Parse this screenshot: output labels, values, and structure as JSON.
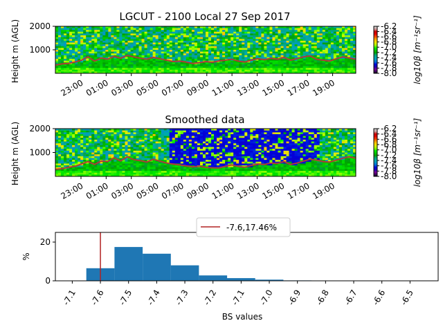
{
  "chart_data": [
    {
      "type": "heatmap",
      "title": "LGCUT - 2100 Local 27 Sep 2017",
      "ylabel": "Height m (AGL)",
      "y_ticks": [
        "1000",
        "2000"
      ],
      "ylim": [
        0,
        2000
      ],
      "x_ticks": [
        "23:00",
        "01:00",
        "03:00",
        "05:00",
        "07:00",
        "09:00",
        "11:00",
        "13:00",
        "15:00",
        "17:00",
        "19:00"
      ],
      "colorbar_label": "log10β [m⁻¹sr⁻¹]",
      "colorbar_ticks": [
        "-6.2",
        "-6.4",
        "-6.6",
        "-6.8",
        "-7.0",
        "-7.2",
        "-7.4",
        "-7.6",
        "-7.8",
        "-8.0"
      ],
      "colorbar_range": [
        -8.0,
        -6.2
      ],
      "colormap": "nipy_spectral",
      "line_color": "#b03a3a",
      "line_values": [
        350,
        400,
        420,
        480,
        560,
        700,
        520,
        650,
        600,
        720,
        640,
        760,
        700,
        640,
        600,
        680,
        620,
        560,
        500,
        520,
        480,
        420,
        450,
        500,
        470,
        520,
        560,
        600,
        520,
        480,
        560,
        620,
        580,
        640,
        600,
        680,
        560,
        620,
        700,
        740,
        600,
        560,
        520,
        620,
        700,
        650,
        600
      ]
    },
    {
      "type": "heatmap",
      "title": "Smoothed data",
      "ylabel": "Height m (AGL)",
      "y_ticks": [
        "1000",
        "2000"
      ],
      "ylim": [
        0,
        2000
      ],
      "x_ticks": [
        "23:00",
        "01:00",
        "03:00",
        "05:00",
        "07:00",
        "09:00",
        "11:00",
        "13:00",
        "15:00",
        "17:00",
        "19:00"
      ],
      "colorbar_label": "log10β [m⁻¹sr⁻¹]",
      "colorbar_ticks": [
        "-6.2",
        "-6.4",
        "-6.6",
        "-6.8",
        "-7.0",
        "-7.2",
        "-7.4",
        "-7.6",
        "-7.8",
        "-8.0"
      ],
      "colorbar_range": [
        -8.0,
        -6.2
      ],
      "colormap": "nipy_spectral",
      "line_color": "#b03a3a",
      "line_values": [
        300,
        320,
        380,
        420,
        520,
        620,
        500,
        640,
        620,
        780,
        650,
        820,
        700,
        660,
        600,
        720,
        640,
        560,
        520,
        480,
        440,
        400,
        430,
        380,
        360,
        350,
        420,
        480,
        420,
        380,
        460,
        520,
        500,
        560,
        540,
        620,
        500,
        560,
        640,
        720,
        680,
        620,
        600,
        680,
        760,
        820,
        760
      ]
    },
    {
      "type": "bar",
      "xlabel": "BS values",
      "ylabel": "%",
      "ylim": [
        0,
        25
      ],
      "y_ticks": [
        "0",
        "20"
      ],
      "x_ticks": [
        "-7.1",
        "-7.6",
        "-7.5",
        "-7.4",
        "-7.3",
        "-7.2",
        "-7.1",
        "-7.0",
        "-6.9",
        "-6.8",
        "-6.7",
        "-6.6",
        "-6.5"
      ],
      "bins": [
        -7.65,
        -7.55,
        -7.45,
        -7.35,
        -7.25,
        -7.15,
        -7.05,
        -6.95
      ],
      "values": [
        6.5,
        17.46,
        14.0,
        8.0,
        2.8,
        1.4,
        0.6,
        0.2
      ],
      "bar_color": "#1f77b4",
      "vline": {
        "x": -7.6,
        "color": "#b22222"
      },
      "legend": {
        "label": "-7.6,17.46%",
        "position": "top-center"
      }
    }
  ]
}
